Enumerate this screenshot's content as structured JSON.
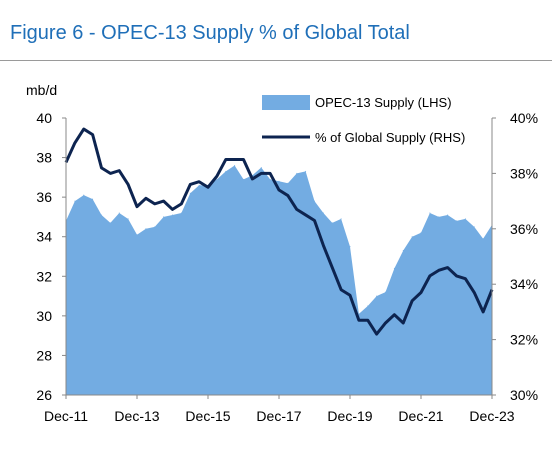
{
  "figure": {
    "title": "Figure 6 - OPEC-13 Supply % of Global Total"
  },
  "chart_data": {
    "type": "area",
    "title": "Figure 6 - OPEC-13 Supply % of Global Total",
    "ylabel": "mb/d",
    "x_labels": [
      "Dec-11",
      "Dec-13",
      "Dec-15",
      "Dec-17",
      "Dec-19",
      "Dec-21",
      "Dec-23"
    ],
    "y_left_ticks": [
      "26",
      "28",
      "30",
      "32",
      "34",
      "36",
      "38",
      "40"
    ],
    "y_right_ticks": [
      "30%",
      "32%",
      "34%",
      "36%",
      "38%",
      "40%"
    ],
    "ylim_left": [
      26,
      40
    ],
    "ylim_right": [
      30,
      40
    ],
    "legend_position": "top-right",
    "colors": {
      "area": "#73ace2",
      "line": "#0d2450"
    },
    "series": [
      {
        "name": "OPEC-13 Supply (LHS)",
        "axis": "left",
        "type": "area",
        "x": [
          "Dec-11",
          "Mar-12",
          "Jun-12",
          "Sep-12",
          "Dec-12",
          "Mar-13",
          "Jun-13",
          "Sep-13",
          "Dec-13",
          "Mar-14",
          "Jun-14",
          "Sep-14",
          "Dec-14",
          "Mar-15",
          "Jun-15",
          "Sep-15",
          "Dec-15",
          "Mar-16",
          "Jun-16",
          "Sep-16",
          "Dec-16",
          "Mar-17",
          "Jun-17",
          "Sep-17",
          "Dec-17",
          "Mar-18",
          "Jun-18",
          "Sep-18",
          "Dec-18",
          "Mar-19",
          "Jun-19",
          "Sep-19",
          "Dec-19",
          "Mar-20",
          "Jun-20",
          "Sep-20",
          "Dec-20",
          "Mar-21",
          "Jun-21",
          "Sep-21",
          "Dec-21",
          "Mar-22",
          "Jun-22",
          "Sep-22",
          "Dec-22",
          "Mar-23",
          "Jun-23",
          "Sep-23",
          "Dec-23"
        ],
        "values": [
          34.8,
          35.8,
          36.1,
          35.9,
          35.1,
          34.7,
          35.2,
          34.9,
          34.1,
          34.4,
          34.5,
          35.0,
          35.1,
          35.2,
          36.2,
          36.6,
          36.6,
          36.9,
          37.3,
          37.6,
          36.9,
          37.1,
          37.5,
          36.9,
          36.8,
          36.7,
          37.2,
          37.3,
          35.8,
          35.2,
          34.7,
          34.9,
          33.5,
          30.1,
          30.5,
          31.0,
          31.2,
          32.4,
          33.3,
          34.0,
          34.2,
          35.2,
          35.0,
          35.1,
          34.8,
          34.9,
          34.5,
          33.9,
          34.6
        ]
      },
      {
        "name": "% of Global Supply (RHS)",
        "axis": "right",
        "type": "line",
        "x": [
          "Dec-11",
          "Mar-12",
          "Jun-12",
          "Sep-12",
          "Dec-12",
          "Mar-13",
          "Jun-13",
          "Sep-13",
          "Dec-13",
          "Mar-14",
          "Jun-14",
          "Sep-14",
          "Dec-14",
          "Mar-15",
          "Jun-15",
          "Sep-15",
          "Dec-15",
          "Mar-16",
          "Jun-16",
          "Sep-16",
          "Dec-16",
          "Mar-17",
          "Jun-17",
          "Sep-17",
          "Dec-17",
          "Mar-18",
          "Jun-18",
          "Sep-18",
          "Dec-18",
          "Mar-19",
          "Jun-19",
          "Sep-19",
          "Dec-19",
          "Mar-20",
          "Jun-20",
          "Sep-20",
          "Dec-20",
          "Mar-21",
          "Jun-21",
          "Sep-21",
          "Dec-21",
          "Mar-22",
          "Jun-22",
          "Sep-22",
          "Dec-22",
          "Mar-23",
          "Jun-23",
          "Sep-23",
          "Dec-23"
        ],
        "values": [
          38.4,
          39.1,
          39.6,
          39.4,
          38.2,
          38.0,
          38.1,
          37.6,
          36.8,
          37.1,
          36.9,
          37.0,
          36.7,
          36.9,
          37.6,
          37.7,
          37.5,
          37.9,
          38.5,
          38.5,
          38.5,
          37.8,
          38.0,
          38.0,
          37.4,
          37.2,
          36.7,
          36.5,
          36.3,
          35.4,
          34.6,
          33.8,
          33.6,
          32.7,
          32.7,
          32.2,
          32.6,
          32.9,
          32.6,
          33.4,
          33.7,
          34.3,
          34.5,
          34.6,
          34.3,
          34.2,
          33.7,
          33.0,
          33.8
        ]
      }
    ]
  }
}
